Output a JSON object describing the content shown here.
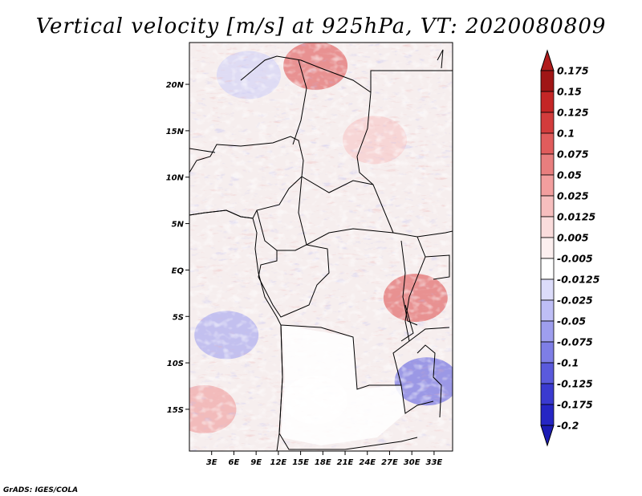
{
  "chart_data": {
    "type": "heatmap",
    "title": "Vertical velocity [m/s] at 925hPa, VT: 2020080809",
    "variable": "Vertical velocity",
    "units": "m/s",
    "level": "925hPa",
    "valid_time": "2020080809",
    "x_range": [
      0,
      35.5
    ],
    "y_range": [
      -19.5,
      24.5
    ],
    "x_ticks": [
      {
        "label": "3E",
        "value": 3
      },
      {
        "label": "6E",
        "value": 6
      },
      {
        "label": "9E",
        "value": 9
      },
      {
        "label": "12E",
        "value": 12
      },
      {
        "label": "15E",
        "value": 15
      },
      {
        "label": "18E",
        "value": 18
      },
      {
        "label": "21E",
        "value": 21
      },
      {
        "label": "24E",
        "value": 24
      },
      {
        "label": "27E",
        "value": 27
      },
      {
        "label": "30E",
        "value": 30
      },
      {
        "label": "33E",
        "value": 33
      }
    ],
    "y_ticks": [
      {
        "label": "20N",
        "value": 20
      },
      {
        "label": "15N",
        "value": 15
      },
      {
        "label": "10N",
        "value": 10
      },
      {
        "label": "5N",
        "value": 5
      },
      {
        "label": "EQ",
        "value": 0
      },
      {
        "label": "5S",
        "value": -5
      },
      {
        "label": "10S",
        "value": -10
      },
      {
        "label": "15S",
        "value": -15
      }
    ],
    "colorbar": {
      "max_label": "0.175",
      "min_label": "-0.2",
      "levels": [
        {
          "label": "0.15",
          "color": "#a01616",
          "top": "#b01c1c"
        },
        {
          "label": "0.125",
          "color": "#c42626"
        },
        {
          "label": "0.1",
          "color": "#d23c3c"
        },
        {
          "label": "0.075",
          "color": "#e05c5c"
        },
        {
          "label": "0.05",
          "color": "#e87e7e"
        },
        {
          "label": "0.025",
          "color": "#f29e9e"
        },
        {
          "label": "0.0125",
          "color": "#f6bebe"
        },
        {
          "label": "0.005",
          "color": "#fadcdc"
        },
        {
          "label": "-0.005",
          "color": "#fcefef"
        },
        {
          "label": "-0.0125",
          "color": "#ffffff"
        },
        {
          "label": "-0.025",
          "color": "#dcdcfa"
        },
        {
          "label": "-0.05",
          "color": "#bebef6"
        },
        {
          "label": "-0.075",
          "color": "#9e9eee"
        },
        {
          "label": "-0.1",
          "color": "#7e7ee6"
        },
        {
          "label": "-0.125",
          "color": "#5a5adc"
        },
        {
          "label": "-0.175",
          "color": "#3a3ad0"
        }
      ],
      "bottom_color": "#1c1cb4",
      "top_color": "#b01c1c",
      "extra_mid": "#2626c4"
    },
    "field_pattern": [
      {
        "lon": 17,
        "lat": 22,
        "value": 0.1
      },
      {
        "lon": 25,
        "lat": 14,
        "value": 0.025
      },
      {
        "lon": 30.5,
        "lat": -3,
        "value": 0.1
      },
      {
        "lon": 32,
        "lat": -12,
        "value": -0.1
      },
      {
        "lon": 5,
        "lat": -7,
        "value": -0.05
      },
      {
        "lon": 2,
        "lat": -15,
        "value": 0.05
      },
      {
        "lon": 17,
        "lat": -14,
        "value": 0.0
      },
      {
        "lon": 8,
        "lat": 21,
        "value": -0.025
      }
    ]
  },
  "credit": "GrADS: IGES/COLA"
}
